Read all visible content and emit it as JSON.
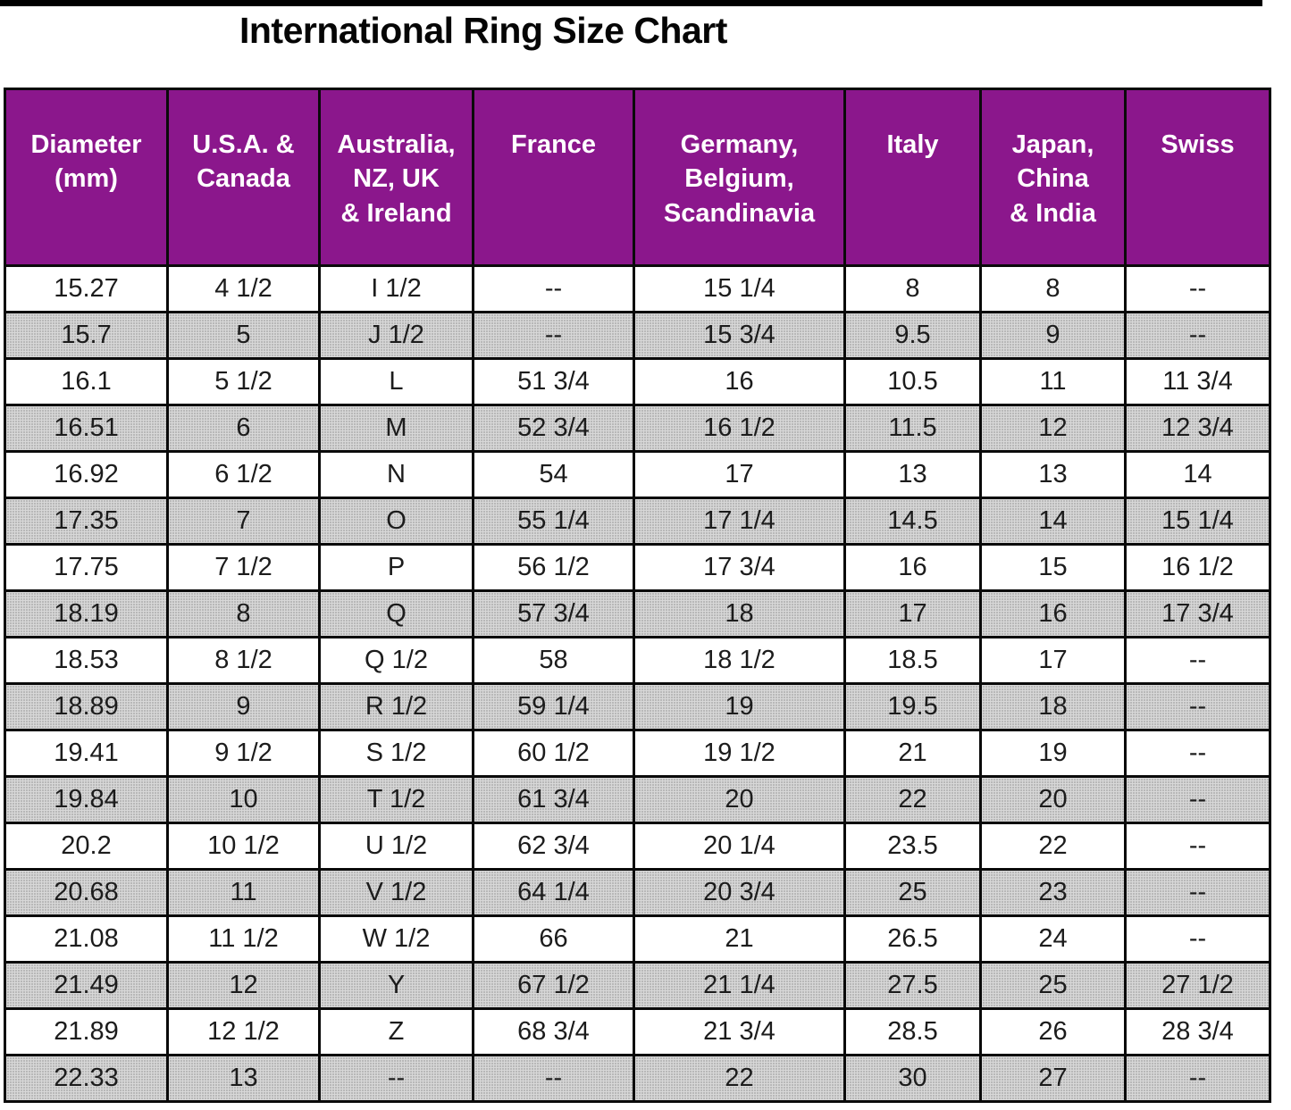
{
  "title": "International Ring Size Chart",
  "chart_data": {
    "type": "table",
    "title": "International Ring Size Chart",
    "empty_marker": "--",
    "columns": [
      {
        "key": "diameter-mm",
        "label": "Diameter\n(mm)"
      },
      {
        "key": "usa-canada",
        "label": "U.S.A. &\nCanada"
      },
      {
        "key": "australia-nz-uk-ireland",
        "label": "Australia,\nNZ, UK\n& Ireland"
      },
      {
        "key": "france",
        "label": "France"
      },
      {
        "key": "germany-belgium-scandinavia",
        "label": "Germany,\nBelgium,\nScandinavia"
      },
      {
        "key": "italy",
        "label": "Italy"
      },
      {
        "key": "japan-china-india",
        "label": "Japan,\nChina\n& India"
      },
      {
        "key": "swiss",
        "label": "Swiss"
      }
    ],
    "rows": [
      [
        "15.27",
        "4 1/2",
        "I 1/2",
        "--",
        "15 1/4",
        "8",
        "8",
        "--"
      ],
      [
        "15.7",
        "5",
        "J 1/2",
        "--",
        "15 3/4",
        "9.5",
        "9",
        "--"
      ],
      [
        "16.1",
        "5 1/2",
        "L",
        "51 3/4",
        "16",
        "10.5",
        "11",
        "11 3/4"
      ],
      [
        "16.51",
        "6",
        "M",
        "52 3/4",
        "16 1/2",
        "11.5",
        "12",
        "12 3/4"
      ],
      [
        "16.92",
        "6 1/2",
        "N",
        "54",
        "17",
        "13",
        "13",
        "14"
      ],
      [
        "17.35",
        "7",
        "O",
        "55 1/4",
        "17 1/4",
        "14.5",
        "14",
        "15 1/4"
      ],
      [
        "17.75",
        "7 1/2",
        "P",
        "56 1/2",
        "17 3/4",
        "16",
        "15",
        "16 1/2"
      ],
      [
        "18.19",
        "8",
        "Q",
        "57 3/4",
        "18",
        "17",
        "16",
        "17 3/4"
      ],
      [
        "18.53",
        "8 1/2",
        "Q 1/2",
        "58",
        "18 1/2",
        "18.5",
        "17",
        "--"
      ],
      [
        "18.89",
        "9",
        "R 1/2",
        "59 1/4",
        "19",
        "19.5",
        "18",
        "--"
      ],
      [
        "19.41",
        "9 1/2",
        "S 1/2",
        "60 1/2",
        "19 1/2",
        "21",
        "19",
        "--"
      ],
      [
        "19.84",
        "10",
        "T 1/2",
        "61 3/4",
        "20",
        "22",
        "20",
        "--"
      ],
      [
        "20.2",
        "10 1/2",
        "U 1/2",
        "62 3/4",
        "20 1/4",
        "23.5",
        "22",
        "--"
      ],
      [
        "20.68",
        "11",
        "V 1/2",
        "64 1/4",
        "20 3/4",
        "25",
        "23",
        "--"
      ],
      [
        "21.08",
        "11 1/2",
        "W 1/2",
        "66",
        "21",
        "26.5",
        "24",
        "--"
      ],
      [
        "21.49",
        "12",
        "Y",
        "67 1/2",
        "21 1/4",
        "27.5",
        "25",
        "27 1/2"
      ],
      [
        "21.89",
        "12 1/2",
        "Z",
        "68 3/4",
        "21 3/4",
        "28.5",
        "26",
        "28 3/4"
      ],
      [
        "22.33",
        "13",
        "--",
        "--",
        "22",
        "30",
        "27",
        "--"
      ]
    ],
    "layout": {
      "header_bg": "#8B178C",
      "header_text_color": "#ffffff",
      "alt_row_bg": "#d0d0d0",
      "border_color": "#0a0a0a",
      "row_striping": "even rows white, odd rows halftone gray, starting white"
    }
  }
}
